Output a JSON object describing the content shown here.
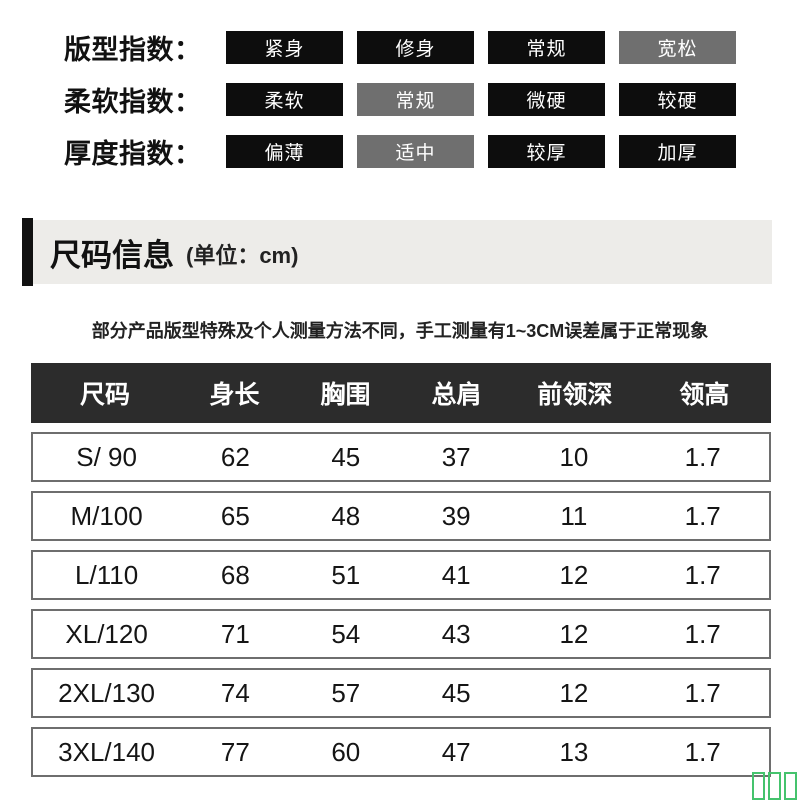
{
  "indices": {
    "rows": [
      {
        "label": "版型指数：",
        "options": [
          {
            "text": "紧身",
            "active": false
          },
          {
            "text": "修身",
            "active": false
          },
          {
            "text": "常规",
            "active": false
          },
          {
            "text": "宽松",
            "active": true
          }
        ]
      },
      {
        "label": "柔软指数：",
        "options": [
          {
            "text": "柔软",
            "active": false
          },
          {
            "text": "常规",
            "active": true
          },
          {
            "text": "微硬",
            "active": false
          },
          {
            "text": "较硬",
            "active": false
          }
        ]
      },
      {
        "label": "厚度指数：",
        "options": [
          {
            "text": "偏薄",
            "active": false
          },
          {
            "text": "适中",
            "active": true
          },
          {
            "text": "较厚",
            "active": false
          },
          {
            "text": "加厚",
            "active": false
          }
        ]
      }
    ]
  },
  "size_section": {
    "title": "尺码信息",
    "unit_note": "(单位：cm)",
    "disclaimer": "部分产品版型特殊及个人测量方法不同，手工测量有1~3CM误差属于正常现象"
  },
  "size_table": {
    "columns": [
      "尺码",
      "身长",
      "胸围",
      "总肩",
      "前领深",
      "领高"
    ],
    "rows": [
      [
        "S/ 90",
        "62",
        "45",
        "37",
        "10",
        "1.7"
      ],
      [
        "M/100",
        "65",
        "48",
        "39",
        "11",
        "1.7"
      ],
      [
        "L/110",
        "68",
        "51",
        "41",
        "12",
        "1.7"
      ],
      [
        "XL/120",
        "71",
        "54",
        "43",
        "12",
        "1.7"
      ],
      [
        "2XL/130",
        "74",
        "57",
        "45",
        "12",
        "1.7"
      ],
      [
        "3XL/140",
        "77",
        "60",
        "47",
        "13",
        "1.7"
      ]
    ]
  },
  "colors": {
    "option_default_bg": "#0d0d0d",
    "option_active_bg": "#6f6f6f",
    "table_header_bg": "#2c2c2c",
    "table_row_border": "#6e6e6e",
    "banner_bg": "#edece9",
    "accent_bar": "#111111",
    "watermark_green": "#45c36d"
  },
  "watermark": {
    "glyph_count": 4
  }
}
